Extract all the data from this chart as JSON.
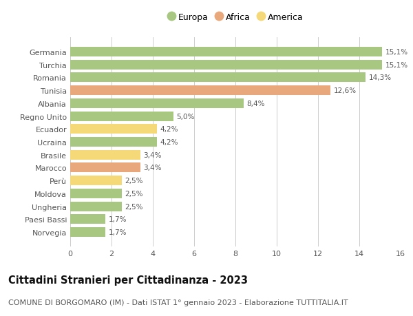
{
  "categories": [
    "Norvegia",
    "Paesi Bassi",
    "Ungheria",
    "Moldova",
    "Perù",
    "Marocco",
    "Brasile",
    "Ucraina",
    "Ecuador",
    "Regno Unito",
    "Albania",
    "Tunisia",
    "Romania",
    "Turchia",
    "Germania"
  ],
  "values": [
    1.7,
    1.7,
    2.5,
    2.5,
    2.5,
    3.4,
    3.4,
    4.2,
    4.2,
    5.0,
    8.4,
    12.6,
    14.3,
    15.1,
    15.1
  ],
  "labels": [
    "1,7%",
    "1,7%",
    "2,5%",
    "2,5%",
    "2,5%",
    "3,4%",
    "3,4%",
    "4,2%",
    "4,2%",
    "5,0%",
    "8,4%",
    "12,6%",
    "14,3%",
    "15,1%",
    "15,1%"
  ],
  "continents": [
    "Europa",
    "Europa",
    "Europa",
    "Europa",
    "America",
    "Africa",
    "America",
    "Europa",
    "America",
    "Europa",
    "Europa",
    "Africa",
    "Europa",
    "Europa",
    "Europa"
  ],
  "colors": {
    "Europa": "#a8c882",
    "Africa": "#e8a87c",
    "America": "#f5d878"
  },
  "legend_labels": [
    "Europa",
    "Africa",
    "America"
  ],
  "legend_colors": [
    "#a8c882",
    "#e8a87c",
    "#f5d878"
  ],
  "xlim": [
    0,
    16
  ],
  "xticks": [
    0,
    2,
    4,
    6,
    8,
    10,
    12,
    14,
    16
  ],
  "title": "Cittadini Stranieri per Cittadinanza - 2023",
  "subtitle": "COMUNE DI BORGOMARO (IM) - Dati ISTAT 1° gennaio 2023 - Elaborazione TUTTITALIA.IT",
  "background_color": "#ffffff",
  "grid_color": "#cccccc",
  "bar_height": 0.75,
  "title_fontsize": 10.5,
  "subtitle_fontsize": 8,
  "label_fontsize": 7.5,
  "tick_fontsize": 8,
  "legend_fontsize": 9
}
